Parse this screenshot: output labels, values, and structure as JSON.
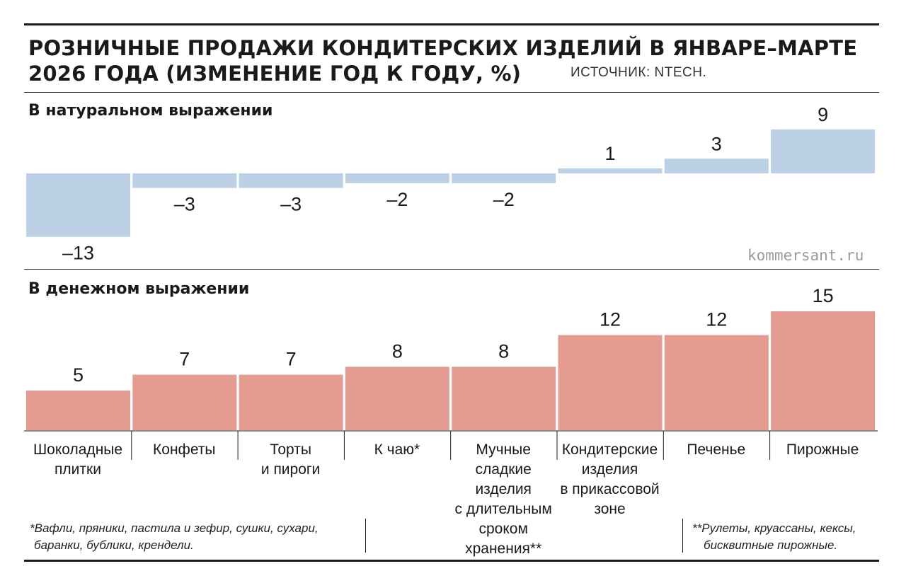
{
  "header": {
    "title": "РОЗНИЧНЫЕ ПРОДАЖИ КОНДИТЕРСКИХ ИЗДЕЛИЙ В ЯНВАРЕ–МАРТЕ 2026 ГОДА (ИЗМЕНЕНИЕ ГОД К ГОДУ, %)",
    "source": "ИСТОЧНИК: NTECH.",
    "credit": "kommersant.ru"
  },
  "chart_data": [
    {
      "type": "bar",
      "title": "В натуральном выражении",
      "categories": [
        "Шоколадные плитки",
        "Конфеты",
        "Торты и пироги",
        "К чаю*",
        "Мучные сладкие изделия с длительным сроком хранения**",
        "Кондитерские изделия в прикассовой зоне",
        "Печенье",
        "Пирожные"
      ],
      "values": [
        -13,
        -3,
        -3,
        -2,
        -2,
        1,
        3,
        9
      ],
      "value_labels": [
        "–13",
        "–3",
        "–3",
        "–2",
        "–2",
        "1",
        "3",
        "9"
      ],
      "color": "#bcd1e5",
      "grid": false
    },
    {
      "type": "bar",
      "title": "В денежном выражении",
      "categories": [
        "Шоколадные плитки",
        "Конфеты",
        "Торты и пироги",
        "К чаю*",
        "Мучные сладкие изделия с длительным сроком хранения**",
        "Кондитерские изделия в прикассовой зоне",
        "Печенье",
        "Пирожные"
      ],
      "values": [
        5,
        7,
        7,
        8,
        8,
        12,
        12,
        15
      ],
      "value_labels": [
        "5",
        "7",
        "7",
        "8",
        "8",
        "12",
        "12",
        "15"
      ],
      "color": "#e49c90",
      "grid": false
    }
  ],
  "category_labels": [
    [
      "Шоколадные",
      "плитки"
    ],
    [
      "Конфеты"
    ],
    [
      "Торты",
      "и пироги"
    ],
    [
      "К чаю*"
    ],
    [
      "Мучные",
      "сладкие",
      "изделия",
      "с длительным",
      "сроком хранения**"
    ],
    [
      "Кондитерские",
      "изделия",
      "в прикассовой",
      "зоне"
    ],
    [
      "Печенье"
    ],
    [
      "Пирожные"
    ]
  ],
  "footnotes": {
    "note1": [
      "*Вафли, пряники, пастила и зефир,  сушки, сухари,",
      "баранки, бублики, крендели."
    ],
    "note2": [
      "**Рулеты, круассаны, кексы,",
      "бисквитные пирожные."
    ]
  }
}
